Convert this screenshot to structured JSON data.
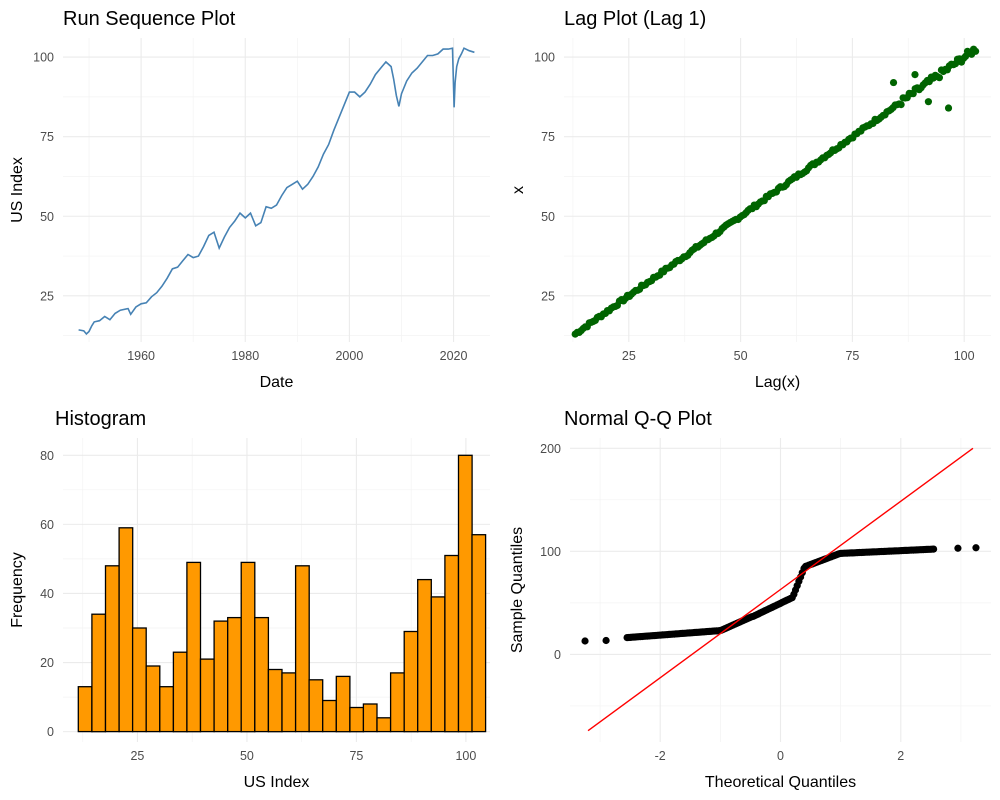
{
  "colors": {
    "run_line": "#4682b4",
    "lag_points": "#006400",
    "hist_fill": "#ff9900",
    "hist_border": "#000000",
    "qq_points": "#000000",
    "qq_line": "#ff0000",
    "grid": "#ebebeb"
  },
  "chart_data": [
    {
      "type": "line",
      "title": "Run Sequence Plot",
      "xlabel": "Date",
      "ylabel": "US Index",
      "xlim": [
        1945,
        2027
      ],
      "ylim": [
        10.5,
        106
      ],
      "xticks": [
        1960,
        1980,
        2000,
        2020
      ],
      "xtick_labels": [
        "1960",
        "1980",
        "2000",
        "2020"
      ],
      "yticks": [
        25,
        50,
        75,
        100
      ],
      "ytick_labels": [
        "25",
        "50",
        "75",
        "100"
      ],
      "grid": true,
      "series": [
        {
          "x": [
            1948.0,
            1949.0,
            1949.5,
            1950.0,
            1950.5,
            1951.0,
            1952.0,
            1953.0,
            1954.0,
            1955.0,
            1956.0,
            1957.5,
            1958.0,
            1959.0,
            1960.0,
            1961.0,
            1962.0,
            1963.0,
            1964.0,
            1965.0,
            1966.0,
            1967.0,
            1968.0,
            1969.0,
            1970.0,
            1971.0,
            1972.0,
            1973.0,
            1974.0,
            1975.0,
            1976.0,
            1977.0,
            1978.0,
            1979.0,
            1980.0,
            1981.0,
            1982.0,
            1983.0,
            1984.0,
            1985.0,
            1986.0,
            1987.0,
            1988.0,
            1989.0,
            1990.0,
            1991.0,
            1992.0,
            1993.0,
            1994.0,
            1995.0,
            1996.0,
            1997.0,
            1998.0,
            1999.0,
            2000.0,
            2001.0,
            2002.0,
            2003.0,
            2004.0,
            2005.0,
            2006.0,
            2007.0,
            2008.0,
            2008.5,
            2009.0,
            2009.5,
            2010.0,
            2011.0,
            2012.0,
            2013.0,
            2014.0,
            2015.0,
            2016.0,
            2017.0,
            2018.0,
            2019.0,
            2019.8,
            2020.1,
            2020.3,
            2020.6,
            2021.0,
            2021.5,
            2022.0,
            2023.0,
            2024.0
          ],
          "y": [
            14.3,
            14.0,
            13.0,
            13.8,
            15.5,
            16.8,
            17.2,
            18.5,
            17.5,
            19.5,
            20.5,
            21.0,
            19.2,
            21.5,
            22.5,
            22.8,
            24.7,
            26.0,
            28.0,
            30.5,
            33.5,
            34.0,
            36.0,
            38.0,
            37.0,
            37.5,
            40.5,
            44.0,
            45.0,
            40.0,
            43.5,
            46.5,
            48.5,
            51.0,
            49.5,
            51.0,
            47.0,
            48.0,
            53.0,
            52.5,
            53.5,
            56.5,
            59.0,
            60.0,
            61.0,
            58.5,
            60.0,
            62.5,
            65.5,
            69.5,
            72.5,
            77.0,
            81.0,
            85.0,
            89.0,
            89.0,
            87.5,
            89.0,
            91.5,
            94.5,
            96.5,
            98.5,
            97.0,
            93.0,
            88.0,
            84.5,
            88.5,
            92.5,
            95.0,
            96.5,
            98.5,
            100.5,
            100.5,
            101.0,
            102.5,
            102.5,
            102.8,
            84.2,
            92.0,
            97.0,
            99.5,
            101.0,
            102.8,
            102.0,
            101.5
          ]
        }
      ]
    },
    {
      "type": "scatter",
      "title": "Lag Plot (Lag 1)",
      "xlabel": "Lag(x)",
      "ylabel": "x",
      "xlim": [
        10.5,
        106
      ],
      "ylim": [
        10.5,
        106
      ],
      "xticks": [
        25,
        50,
        75,
        100
      ],
      "xtick_labels": [
        "25",
        "50",
        "75",
        "100"
      ],
      "yticks": [
        25,
        50,
        75,
        100
      ],
      "ytick_labels": [
        "25",
        "50",
        "75",
        "100"
      ],
      "grid": true,
      "series": [
        {
          "x_range": [
            13,
            103
          ],
          "note_outliers": [
            [
              96.5,
              84.0
            ],
            [
              84.2,
              92.0
            ],
            [
              92.0,
              86.0
            ],
            [
              89.0,
              94.5
            ]
          ]
        }
      ]
    },
    {
      "type": "bar",
      "title": "Histogram",
      "xlabel": "US Index",
      "ylabel": "Frequency",
      "xlim": [
        8,
        105.5
      ],
      "ylim": [
        -3,
        85
      ],
      "xticks": [
        25,
        50,
        75,
        100
      ],
      "xtick_labels": [
        "25",
        "50",
        "75",
        "100"
      ],
      "yticks": [
        0,
        20,
        40,
        60,
        80
      ],
      "ytick_labels": [
        "0",
        "20",
        "40",
        "60",
        "80"
      ],
      "grid": true,
      "bin_width": 3.1,
      "bin_start": 11.5,
      "values": [
        13,
        34,
        48,
        59,
        30,
        19,
        13,
        23,
        49,
        21,
        32,
        33,
        49,
        33,
        18,
        17,
        48,
        15,
        9,
        16,
        7,
        8,
        4,
        17,
        29,
        44,
        39,
        51,
        80,
        57
      ]
    },
    {
      "type": "scatter",
      "title": "Normal Q-Q Plot",
      "xlabel": "Theoretical Quantiles",
      "ylabel": "Sample Quantiles",
      "xlim": [
        -3.5,
        3.5
      ],
      "ylim": [
        -85,
        210
      ],
      "xticks": [
        -2,
        0,
        2
      ],
      "xtick_labels": [
        "-2",
        "0",
        "2"
      ],
      "yticks": [
        0,
        100,
        200
      ],
      "ytick_labels": [
        "0",
        "100",
        "200"
      ],
      "grid": true,
      "reference_line": {
        "x": [
          -3.2,
          3.2
        ],
        "y": [
          -74,
          200
        ]
      }
    }
  ]
}
